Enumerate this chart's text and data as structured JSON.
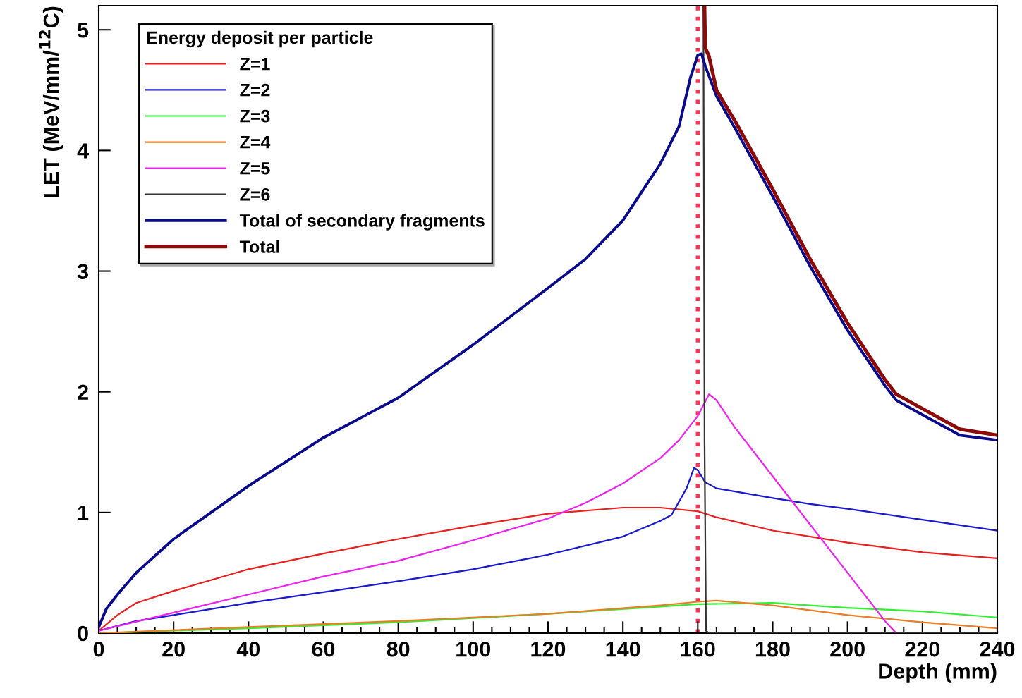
{
  "chart_data": {
    "type": "line",
    "xlabel": "Depth (mm)",
    "ylabel": "LET (MeV/mm/$^{12}$C)",
    "legend_title": "Energy deposit per particle",
    "legend": "top left",
    "grid": false,
    "line_style": "solid",
    "marker": "none",
    "xlim": [
      0,
      240
    ],
    "ylim": [
      0,
      5.2
    ],
    "xticks": [
      0,
      20,
      40,
      60,
      80,
      100,
      120,
      140,
      160,
      180,
      200,
      220,
      240
    ],
    "yticks": [
      0,
      1,
      2,
      3,
      4,
      5
    ],
    "ref_lines": [
      {
        "axis": "x",
        "value": 160,
        "color": "#ff3355",
        "line_style": "dotted"
      }
    ],
    "series": [
      {
        "name": "Z=1",
        "color": "#e8201f",
        "x": [
          0,
          5,
          10,
          20,
          40,
          60,
          80,
          100,
          120,
          140,
          150,
          160,
          165,
          180,
          200,
          220,
          240
        ],
        "values": [
          0.02,
          0.15,
          0.25,
          0.35,
          0.53,
          0.66,
          0.78,
          0.89,
          0.99,
          1.04,
          1.04,
          1.01,
          0.96,
          0.85,
          0.75,
          0.67,
          0.62
        ]
      },
      {
        "name": "Z=2",
        "color": "#1a1acc",
        "x": [
          0,
          10,
          20,
          40,
          60,
          80,
          100,
          120,
          140,
          150,
          153,
          157,
          159,
          160,
          162,
          165,
          180,
          190,
          200,
          220,
          240
        ],
        "values": [
          0.02,
          0.1,
          0.15,
          0.25,
          0.34,
          0.43,
          0.53,
          0.65,
          0.8,
          0.93,
          0.98,
          1.2,
          1.37,
          1.35,
          1.25,
          1.2,
          1.12,
          1.07,
          1.03,
          0.94,
          0.85
        ]
      },
      {
        "name": "Z=3",
        "color": "#33ee33",
        "x": [
          0,
          40,
          80,
          120,
          150,
          160,
          180,
          200,
          220,
          240
        ],
        "values": [
          0,
          0.04,
          0.09,
          0.16,
          0.22,
          0.24,
          0.25,
          0.21,
          0.18,
          0.13
        ]
      },
      {
        "name": "Z=4",
        "color": "#e87e2a",
        "x": [
          0,
          40,
          80,
          120,
          150,
          160,
          165,
          180,
          200,
          220,
          240
        ],
        "values": [
          0,
          0.05,
          0.1,
          0.16,
          0.23,
          0.26,
          0.27,
          0.23,
          0.15,
          0.09,
          0.04
        ]
      },
      {
        "name": "Z=5",
        "color": "#ee22ee",
        "x": [
          0,
          20,
          40,
          60,
          80,
          100,
          120,
          130,
          140,
          150,
          155,
          160,
          163,
          165,
          170,
          180,
          190,
          200,
          210,
          213
        ],
        "values": [
          0.02,
          0.17,
          0.32,
          0.47,
          0.6,
          0.77,
          0.95,
          1.08,
          1.24,
          1.45,
          1.6,
          1.8,
          1.98,
          1.93,
          1.7,
          1.3,
          0.9,
          0.5,
          0.1,
          0
        ]
      },
      {
        "name": "Z=6",
        "color": "#333333",
        "x": [
          161.5,
          161.8,
          162.2,
          163,
          240
        ],
        "values": [
          5.2,
          1.6,
          0.02,
          0,
          0
        ]
      },
      {
        "name": "Total of secondary fragments",
        "color": "#0a0a8c",
        "x": [
          0,
          2,
          5,
          10,
          20,
          40,
          60,
          80,
          100,
          120,
          130,
          140,
          150,
          155,
          158,
          160,
          161,
          162,
          165,
          170,
          180,
          190,
          200,
          210,
          213,
          220,
          230,
          240
        ],
        "values": [
          0.05,
          0.2,
          0.32,
          0.5,
          0.78,
          1.22,
          1.62,
          1.95,
          2.39,
          2.86,
          3.1,
          3.42,
          3.89,
          4.2,
          4.6,
          4.79,
          4.8,
          4.7,
          4.45,
          4.18,
          3.62,
          3.04,
          2.51,
          2.05,
          1.93,
          1.81,
          1.64,
          1.6
        ]
      },
      {
        "name": "Total",
        "color": "#8b0a0a",
        "x": [
          161.8,
          162,
          163,
          165,
          170,
          180,
          190,
          200,
          210,
          213,
          220,
          230,
          240
        ],
        "values": [
          5.2,
          4.85,
          4.78,
          4.5,
          4.24,
          3.68,
          3.1,
          2.57,
          2.1,
          1.98,
          1.86,
          1.69,
          1.64
        ]
      }
    ]
  }
}
